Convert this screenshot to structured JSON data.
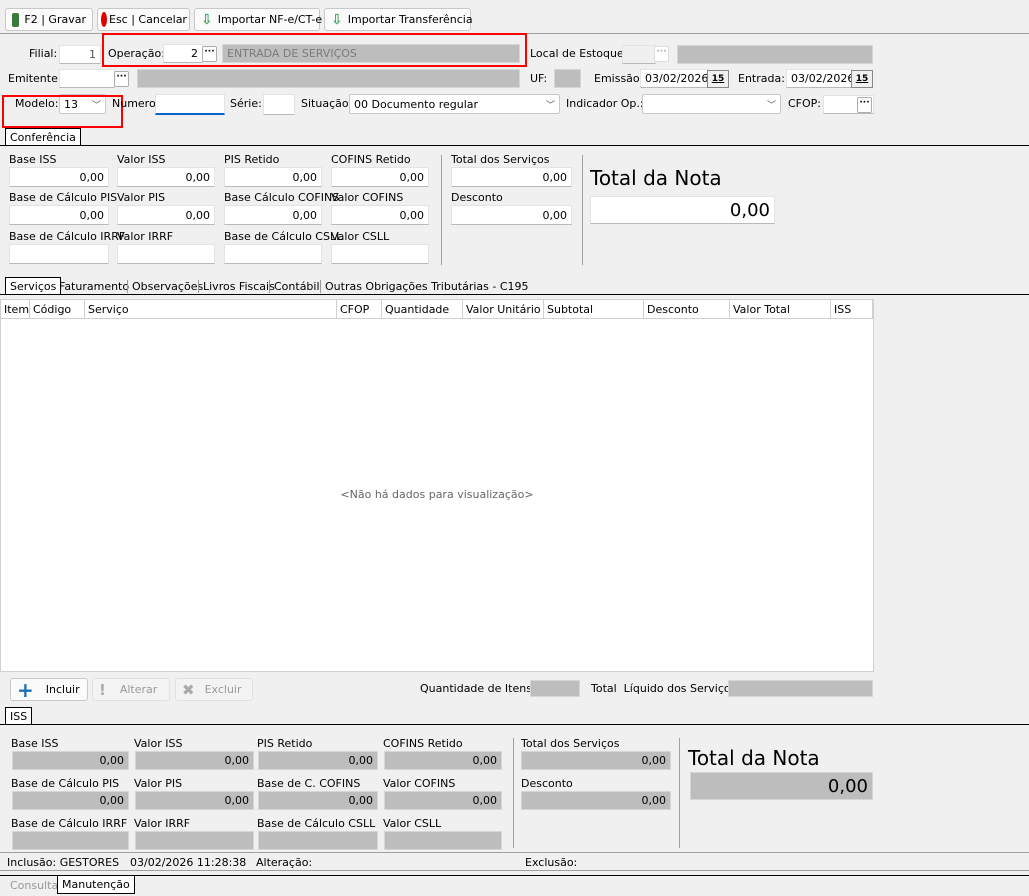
{
  "toolbar": {
    "save": "F2 | Gravar",
    "cancel": "Esc | Cancelar",
    "import_nfe": "Importar NF-e/CT-e",
    "import_transf": "Importar Transferência"
  },
  "header": {
    "filial_label": "Filial:",
    "filial": "1",
    "operacao_label": "Operação:",
    "operacao": "2",
    "operacao_desc": "ENTRADA DE SERVIÇOS",
    "local_estoque_label": "Local de Estoque:",
    "emitente_label": "Emitente:",
    "uf_label": "UF:",
    "emissao_label": "Emissão:",
    "emissao": "03/02/2026",
    "entrada_label": "Entrada:",
    "entrada": "03/02/2026",
    "calendar_icon_text": "15",
    "modelo_label": "Modelo:",
    "modelo": "13",
    "numero_label": "Numero:",
    "serie_label": "Série:",
    "situacao_label": "Situação:",
    "situacao": "00 Documento regular",
    "indicador_label": "Indicador Op.:",
    "indicador": "",
    "cfop_label": "CFOP:"
  },
  "conferencia": {
    "tab": "Conferência",
    "fields": [
      {
        "label": "Base ISS",
        "value": "0,00"
      },
      {
        "label": "Valor ISS",
        "value": "0,00"
      },
      {
        "label": "PIS Retido",
        "value": "0,00"
      },
      {
        "label": "COFINS Retido",
        "value": "0,00"
      },
      {
        "label": "Base de Cálculo PIS",
        "value": "0,00"
      },
      {
        "label": "Valor PIS",
        "value": "0,00"
      },
      {
        "label": "Base Cálculo COFINS",
        "value": "0,00"
      },
      {
        "label": "Valor COFINS",
        "value": "0,00"
      },
      {
        "label": "Base de Cálculo IRRF",
        "value": ""
      },
      {
        "label": "Valor IRRF",
        "value": ""
      },
      {
        "label": "Base de Cálculo CSLL",
        "value": ""
      },
      {
        "label": "Valor CSLL",
        "value": ""
      }
    ],
    "total_servicos_label": "Total dos Serviços",
    "total_servicos": "0,00",
    "desconto_label": "Desconto",
    "desconto": "0,00",
    "total_nota_label": "Total da Nota",
    "total_nota": "0,00"
  },
  "tabs": [
    "Serviços",
    "Faturamento",
    "Observações",
    "Livros Fiscais",
    "Contábil",
    "Outras Obrigações Tributárias - C195"
  ],
  "grid": {
    "columns": [
      "Item",
      "Código",
      "Serviço",
      "CFOP",
      "Quantidade",
      "Valor Unitário",
      "Subtotal",
      "Desconto",
      "Valor Total",
      "ISS"
    ],
    "empty": "<Não há dados para visualização>"
  },
  "actions": {
    "incluir": "Incluir",
    "alterar": "Alterar",
    "excluir": "Excluir",
    "qtd_label": "Quantidade de Itens:",
    "total_liquido_label": "Total  Líquido dos Serviços:"
  },
  "iss": {
    "tab": "ISS",
    "fields": [
      {
        "label": "Base ISS",
        "value": "0,00"
      },
      {
        "label": "Valor ISS",
        "value": "0,00"
      },
      {
        "label": "PIS Retido",
        "value": "0,00"
      },
      {
        "label": "COFINS Retido",
        "value": "0,00"
      },
      {
        "label": "Base de Cálculo PIS",
        "value": "0,00"
      },
      {
        "label": "Valor PIS",
        "value": "0,00"
      },
      {
        "label": "Base de C. COFINS",
        "value": "0,00"
      },
      {
        "label": "Valor COFINS",
        "value": "0,00"
      },
      {
        "label": "Base de Cálculo IRRF",
        "value": ""
      },
      {
        "label": "Valor IRRF",
        "value": ""
      },
      {
        "label": "Base de Cálculo CSLL",
        "value": ""
      },
      {
        "label": "Valor CSLL",
        "value": ""
      }
    ],
    "total_servicos_label": "Total dos Serviços",
    "total_servicos": "0,00",
    "desconto_label": "Desconto",
    "desconto": "0,00",
    "total_nota_label": "Total da Nota",
    "total_nota": "0,00"
  },
  "status": {
    "inclusao": "Inclusão: GESTORES",
    "inclusao_data": "03/02/2026 11:28:38",
    "alteracao": "Alteração:",
    "exclusao": "Exclusão:"
  },
  "bottom_tabs": [
    "Consulta",
    "Manutenção"
  ],
  "colors": {
    "highlight": "#ff0000",
    "disabled_field": "#bdbdbd",
    "add_icon": "#1e6fb8",
    "import_icon": "#3aa55a"
  }
}
